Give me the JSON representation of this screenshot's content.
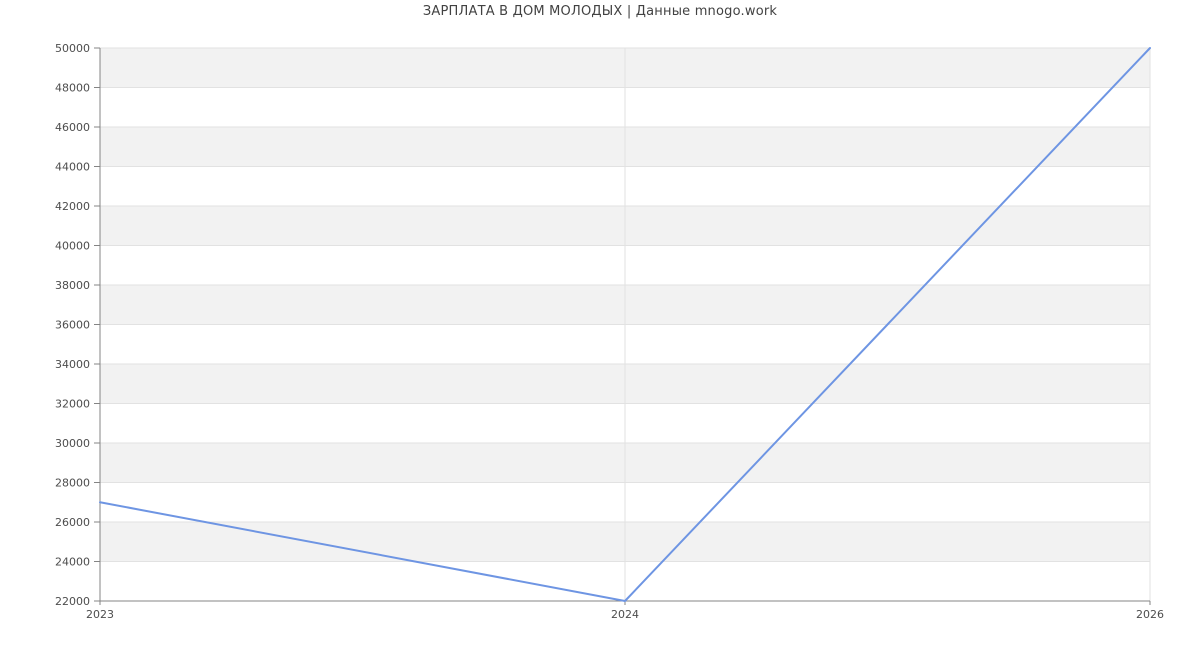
{
  "page": {
    "background": "#ffffff"
  },
  "title": {
    "text": "ЗАРПЛАТА В ДОМ МОЛОДЫХ | Данные mnogo.work",
    "color": "#424242"
  },
  "chart_data": {
    "type": "line",
    "title": "ЗАРПЛАТА В ДОМ МОЛОДЫХ | Данные mnogo.work",
    "categories": [
      "2023",
      "2024",
      "2026"
    ],
    "series": [
      {
        "name": "ЗАРПЛАТА В ДОМ МОЛОДЫХ",
        "values": [
          27000,
          22000,
          50000
        ],
        "color": "#6e95e3",
        "line_width": 2
      }
    ],
    "xlabel": "",
    "ylabel": "",
    "ylim": [
      22000,
      50000
    ],
    "y_tick_step": 2000,
    "y_ticks": [
      22000,
      24000,
      26000,
      28000,
      30000,
      32000,
      34000,
      36000,
      38000,
      40000,
      42000,
      44000,
      46000,
      48000,
      50000
    ],
    "x_tick_labels": [
      "2023",
      "2024",
      "2026"
    ],
    "grid": true,
    "legend_position": "none",
    "style": {
      "band_color_a": "#f2f2f2",
      "band_color_b": "#ffffff",
      "gridline_color": "#e2e2e2",
      "axis_color": "#848484",
      "tick_label_color": "#4d4d4d",
      "tick_font_size": 11
    }
  }
}
